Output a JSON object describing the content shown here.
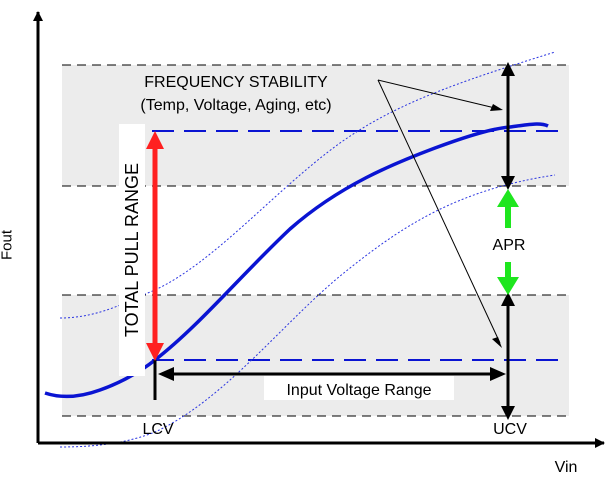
{
  "axes": {
    "x_label": "Vin",
    "y_label": "Fout"
  },
  "labels": {
    "freq_stability_line1": "FREQUENCY STABILITY",
    "freq_stability_line2": "(Temp, Voltage, Aging, etc)",
    "total_pull_range": "TOTAL PULL RANGE",
    "apr": "APR",
    "input_voltage_range": "Input Voltage Range",
    "lcv": "LCV",
    "ucv": "UCV"
  },
  "colors": {
    "curve": "#0a14d2",
    "band": "#ececec",
    "pull_arrow": "#ff2020",
    "apr_arrow": "#1ee61e",
    "axis": "#000000"
  }
}
